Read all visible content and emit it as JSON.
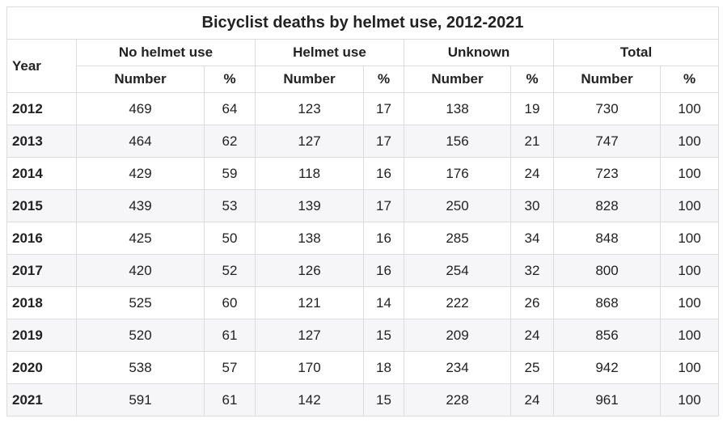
{
  "title": "Bicyclist deaths by helmet use, 2012-2021",
  "headers": {
    "year": "Year",
    "groups": [
      "No helmet use",
      "Helmet use",
      "Unknown",
      "Total"
    ],
    "number": "Number",
    "percent": "%"
  },
  "rows": [
    {
      "year": "2012",
      "cells": [
        "469",
        "64",
        "123",
        "17",
        "138",
        "19",
        "730",
        "100"
      ]
    },
    {
      "year": "2013",
      "cells": [
        "464",
        "62",
        "127",
        "17",
        "156",
        "21",
        "747",
        "100"
      ]
    },
    {
      "year": "2014",
      "cells": [
        "429",
        "59",
        "118",
        "16",
        "176",
        "24",
        "723",
        "100"
      ]
    },
    {
      "year": "2015",
      "cells": [
        "439",
        "53",
        "139",
        "17",
        "250",
        "30",
        "828",
        "100"
      ]
    },
    {
      "year": "2016",
      "cells": [
        "425",
        "50",
        "138",
        "16",
        "285",
        "34",
        "848",
        "100"
      ]
    },
    {
      "year": "2017",
      "cells": [
        "420",
        "52",
        "126",
        "16",
        "254",
        "32",
        "800",
        "100"
      ]
    },
    {
      "year": "2018",
      "cells": [
        "525",
        "60",
        "121",
        "14",
        "222",
        "26",
        "868",
        "100"
      ]
    },
    {
      "year": "2019",
      "cells": [
        "520",
        "61",
        "127",
        "15",
        "209",
        "24",
        "856",
        "100"
      ]
    },
    {
      "year": "2020",
      "cells": [
        "538",
        "57",
        "170",
        "18",
        "234",
        "25",
        "942",
        "100"
      ]
    },
    {
      "year": "2021",
      "cells": [
        "591",
        "61",
        "142",
        "15",
        "228",
        "24",
        "961",
        "100"
      ]
    }
  ]
}
